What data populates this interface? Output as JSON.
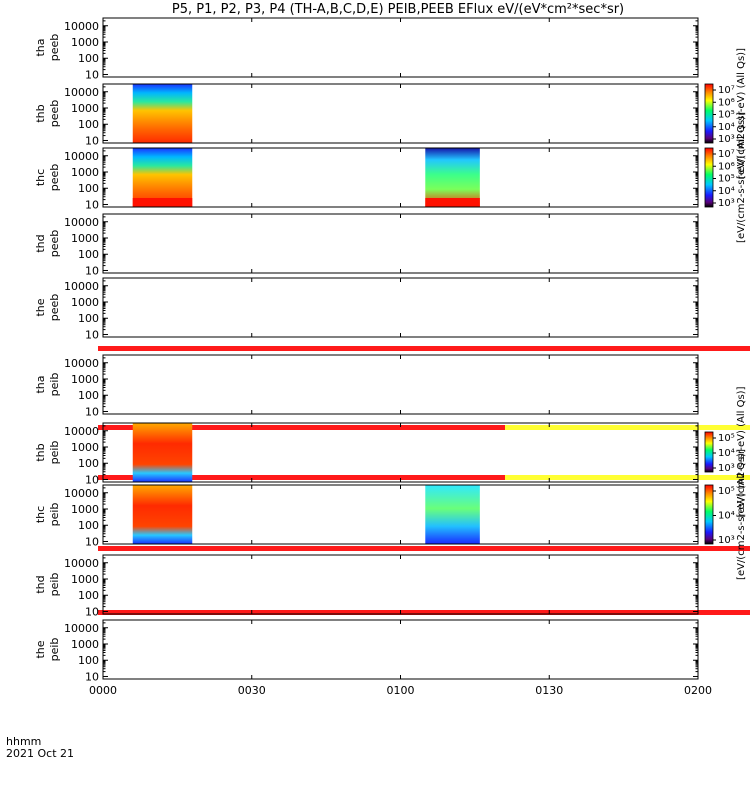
{
  "title": "P5, P1, P2, P3, P4 (TH-A,B,C,D,E) PEIB,PEEB EFlux eV/(eV*cm²*sec*sr)",
  "chart_data": {
    "type": "heatmap",
    "yscale": "log",
    "ylim": [
      7,
      30000
    ],
    "yticks": [
      "10",
      "100",
      "1000",
      "10000"
    ],
    "xticks": [
      "0000",
      "0030",
      "0100",
      "0130",
      "0200"
    ],
    "xlabel_top": "hhmm",
    "xlabel_bottom": "2021 Oct 21",
    "panels": [
      {
        "probe": "tha",
        "product": "peeb",
        "data": []
      },
      {
        "probe": "thb",
        "product": "peeb",
        "data": [
          {
            "t_start": "00:06",
            "t_end": "00:18"
          }
        ]
      },
      {
        "probe": "thc",
        "product": "peeb",
        "data": [
          {
            "t_start": "00:06",
            "t_end": "00:18"
          },
          {
            "t_start": "01:05",
            "t_end": "01:16"
          }
        ]
      },
      {
        "probe": "thd",
        "product": "peeb",
        "data": []
      },
      {
        "probe": "the",
        "product": "peeb",
        "data": []
      },
      {
        "probe": "tha",
        "product": "peib",
        "data": []
      },
      {
        "probe": "thb",
        "product": "peib",
        "data": [
          {
            "t_start": "00:06",
            "t_end": "00:18"
          }
        ]
      },
      {
        "probe": "thc",
        "product": "peib",
        "data": [
          {
            "t_start": "00:06",
            "t_end": "00:18"
          },
          {
            "t_start": "01:05",
            "t_end": "01:16"
          }
        ]
      },
      {
        "probe": "thd",
        "product": "peib",
        "data": []
      },
      {
        "probe": "the",
        "product": "peib",
        "data": []
      }
    ],
    "colorbars": [
      {
        "label": "[eV/(cm2-s-sr-eV) (All Qs)]",
        "ticks": [
          "10³",
          "10⁴",
          "10⁵",
          "10⁶",
          "10⁷"
        ]
      },
      {
        "label": "[eV/(cm2-s-sr-eV) (All Qs)]",
        "ticks": [
          "10³",
          "10⁴",
          "10⁵",
          "10⁶",
          "10⁷"
        ]
      },
      {
        "label": "[eV/(cm2-s-sr-eV) (All Qs)]",
        "ticks": [
          "10³",
          "10⁴",
          "10⁵"
        ]
      },
      {
        "label": "[eV/(cm2-s-sr-eV) (All Qs)]",
        "ticks": [
          "10³",
          "10⁴",
          "10⁵"
        ]
      }
    ]
  }
}
